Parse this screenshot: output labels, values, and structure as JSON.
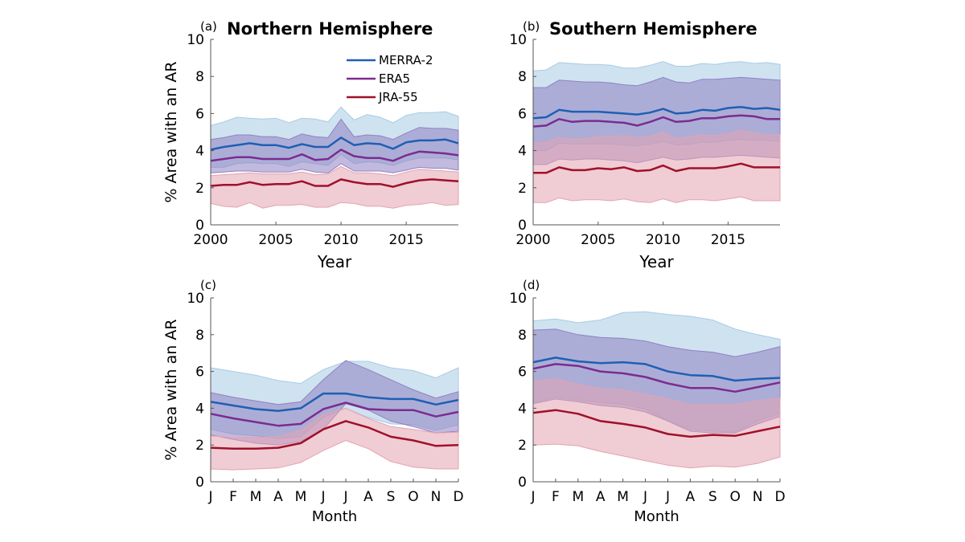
{
  "colors": {
    "MERRA-2": "#1f5fb4",
    "ERA5": "#7b2c8f",
    "JRA-55": "#a0102a",
    "MERRA-2-band": "#a8cbe4",
    "ERA5-band": "#8f82c2",
    "JRA-55-band": "#e3a3b0"
  },
  "legend": {
    "entries": [
      "MERRA-2",
      "ERA5",
      "JRA-55"
    ]
  },
  "chart_data": [
    {
      "id": "a",
      "type": "line",
      "tag": "(a)",
      "title": "Northern Hemisphere",
      "xlabel": "Year",
      "ylabel": "% Area with an AR",
      "ylim": [
        0,
        10
      ],
      "yticks": [
        "0",
        "2",
        "4",
        "6",
        "8",
        "10"
      ],
      "xlim": [
        2000,
        2019
      ],
      "xtick_values": [
        2000,
        2005,
        2010,
        2015
      ],
      "xticks": [
        "2000",
        "2005",
        "2010",
        "2015"
      ],
      "x": [
        2000,
        2001,
        2002,
        2003,
        2004,
        2005,
        2006,
        2007,
        2008,
        2009,
        2010,
        2011,
        2012,
        2013,
        2014,
        2015,
        2016,
        2017,
        2018,
        2019
      ],
      "series": [
        {
          "name": "MERRA-2",
          "values": [
            4.05,
            4.2,
            4.3,
            4.4,
            4.3,
            4.3,
            4.15,
            4.35,
            4.2,
            4.2,
            4.7,
            4.3,
            4.4,
            4.35,
            4.1,
            4.45,
            4.55,
            4.55,
            4.6,
            4.4
          ],
          "upper": [
            5.35,
            5.55,
            5.8,
            5.75,
            5.7,
            5.75,
            5.5,
            5.75,
            5.7,
            5.55,
            6.35,
            5.65,
            5.95,
            5.8,
            5.5,
            5.9,
            6.05,
            6.05,
            6.1,
            5.85
          ],
          "lower": [
            3.1,
            3.1,
            3.3,
            3.35,
            3.3,
            3.3,
            3.15,
            3.4,
            3.3,
            3.2,
            3.8,
            3.3,
            3.4,
            3.35,
            3.2,
            3.45,
            3.6,
            3.6,
            3.6,
            3.5
          ]
        },
        {
          "name": "ERA5",
          "values": [
            3.45,
            3.55,
            3.65,
            3.65,
            3.55,
            3.55,
            3.55,
            3.8,
            3.5,
            3.55,
            4.05,
            3.7,
            3.6,
            3.6,
            3.45,
            3.75,
            3.95,
            3.9,
            3.85,
            3.75
          ],
          "upper": [
            4.6,
            4.7,
            4.85,
            4.85,
            4.75,
            4.75,
            4.6,
            4.9,
            4.75,
            4.7,
            5.7,
            4.75,
            4.85,
            4.8,
            4.6,
            4.95,
            5.25,
            5.2,
            5.2,
            5.1
          ],
          "lower": [
            2.8,
            2.85,
            2.9,
            2.9,
            2.85,
            2.85,
            2.85,
            3.0,
            2.85,
            2.8,
            3.3,
            2.9,
            2.9,
            2.9,
            2.8,
            2.95,
            3.1,
            3.05,
            3.05,
            2.95
          ]
        },
        {
          "name": "JRA-55",
          "values": [
            2.1,
            2.15,
            2.15,
            2.3,
            2.15,
            2.2,
            2.2,
            2.35,
            2.1,
            2.1,
            2.45,
            2.3,
            2.2,
            2.2,
            2.05,
            2.25,
            2.4,
            2.45,
            2.4,
            2.35
          ],
          "upper": [
            2.65,
            2.7,
            2.75,
            2.8,
            2.75,
            2.75,
            2.75,
            2.85,
            2.7,
            2.75,
            3.15,
            2.8,
            2.8,
            2.75,
            2.65,
            2.85,
            3.0,
            2.95,
            2.9,
            2.85
          ],
          "lower": [
            1.15,
            1.0,
            0.95,
            1.2,
            0.9,
            1.05,
            1.05,
            1.1,
            0.95,
            0.95,
            1.2,
            1.15,
            1.0,
            1.0,
            0.9,
            1.05,
            1.1,
            1.2,
            1.05,
            1.1
          ]
        }
      ]
    },
    {
      "id": "b",
      "type": "line",
      "tag": "(b)",
      "title": "Southern Hemisphere",
      "xlabel": "Year",
      "ylabel": "",
      "ylim": [
        0,
        10
      ],
      "yticks": [
        "0",
        "2",
        "4",
        "6",
        "8",
        "10"
      ],
      "xlim": [
        2000,
        2019
      ],
      "xtick_values": [
        2000,
        2005,
        2010,
        2015
      ],
      "xticks": [
        "2000",
        "2005",
        "2010",
        "2015"
      ],
      "x": [
        2000,
        2001,
        2002,
        2003,
        2004,
        2005,
        2006,
        2007,
        2008,
        2009,
        2010,
        2011,
        2012,
        2013,
        2014,
        2015,
        2016,
        2017,
        2018,
        2019
      ],
      "series": [
        {
          "name": "MERRA-2",
          "values": [
            5.75,
            5.8,
            6.2,
            6.1,
            6.1,
            6.1,
            6.05,
            6.0,
            5.95,
            6.05,
            6.25,
            6.0,
            6.05,
            6.2,
            6.15,
            6.3,
            6.35,
            6.25,
            6.3,
            6.2
          ],
          "upper": [
            8.3,
            8.35,
            8.75,
            8.7,
            8.65,
            8.65,
            8.6,
            8.45,
            8.45,
            8.6,
            8.8,
            8.55,
            8.55,
            8.7,
            8.65,
            8.75,
            8.8,
            8.7,
            8.75,
            8.65
          ],
          "lower": [
            4.0,
            4.0,
            4.4,
            4.35,
            4.35,
            4.35,
            4.35,
            4.3,
            4.25,
            4.35,
            4.5,
            4.3,
            4.35,
            4.45,
            4.45,
            4.55,
            4.6,
            4.55,
            4.55,
            4.5
          ]
        },
        {
          "name": "ERA5",
          "values": [
            5.3,
            5.35,
            5.7,
            5.55,
            5.6,
            5.6,
            5.55,
            5.5,
            5.35,
            5.55,
            5.8,
            5.55,
            5.6,
            5.75,
            5.75,
            5.85,
            5.9,
            5.85,
            5.7,
            5.7
          ],
          "upper": [
            7.4,
            7.4,
            7.8,
            7.75,
            7.7,
            7.7,
            7.65,
            7.55,
            7.5,
            7.7,
            7.95,
            7.7,
            7.65,
            7.85,
            7.85,
            7.9,
            7.95,
            7.9,
            7.85,
            7.8
          ],
          "lower": [
            3.25,
            3.25,
            3.55,
            3.5,
            3.55,
            3.55,
            3.5,
            3.45,
            3.35,
            3.5,
            3.65,
            3.5,
            3.55,
            3.65,
            3.65,
            3.7,
            3.75,
            3.7,
            3.65,
            3.6
          ]
        },
        {
          "name": "JRA-55",
          "values": [
            2.8,
            2.8,
            3.1,
            2.95,
            2.95,
            3.05,
            3.0,
            3.1,
            2.9,
            2.95,
            3.2,
            2.9,
            3.05,
            3.05,
            3.05,
            3.15,
            3.3,
            3.1,
            3.1,
            3.1
          ],
          "upper": [
            4.4,
            4.45,
            4.7,
            4.6,
            4.65,
            4.75,
            4.75,
            4.8,
            4.7,
            4.75,
            5.0,
            4.65,
            4.75,
            4.85,
            4.8,
            4.9,
            5.1,
            4.95,
            4.85,
            4.85
          ],
          "lower": [
            1.2,
            1.2,
            1.45,
            1.3,
            1.35,
            1.35,
            1.3,
            1.4,
            1.25,
            1.2,
            1.4,
            1.2,
            1.35,
            1.35,
            1.3,
            1.4,
            1.5,
            1.3,
            1.3,
            1.3
          ]
        }
      ]
    },
    {
      "id": "c",
      "type": "line",
      "tag": "(c)",
      "title": "",
      "xlabel": "Month",
      "ylabel": "% Area with an AR",
      "ylim": [
        0,
        10
      ],
      "yticks": [
        "0",
        "2",
        "4",
        "6",
        "8",
        "10"
      ],
      "xlim": [
        1,
        12
      ],
      "xtick_values": [
        1,
        2,
        3,
        4,
        5,
        6,
        7,
        8,
        9,
        10,
        11,
        12
      ],
      "xticks": [
        "J",
        "F",
        "M",
        "A",
        "M",
        "J",
        "J",
        "A",
        "S",
        "O",
        "N",
        "D"
      ],
      "x": [
        1,
        2,
        3,
        4,
        5,
        6,
        7,
        8,
        9,
        10,
        11,
        12
      ],
      "series": [
        {
          "name": "MERRA-2",
          "values": [
            4.35,
            4.15,
            3.95,
            3.85,
            4.0,
            4.8,
            4.8,
            4.6,
            4.5,
            4.5,
            4.2,
            4.45
          ],
          "upper": [
            6.2,
            6.0,
            5.8,
            5.5,
            5.35,
            6.1,
            6.55,
            6.55,
            6.2,
            6.05,
            5.65,
            6.2
          ],
          "lower": [
            2.85,
            2.6,
            2.5,
            2.35,
            2.45,
            3.5,
            4.0,
            3.5,
            3.15,
            3.1,
            2.8,
            3.1
          ]
        },
        {
          "name": "ERA5",
          "values": [
            3.7,
            3.45,
            3.25,
            3.05,
            3.15,
            3.95,
            4.3,
            3.95,
            3.9,
            3.9,
            3.55,
            3.8
          ],
          "upper": [
            4.85,
            4.6,
            4.4,
            4.2,
            4.35,
            5.55,
            6.6,
            6.1,
            5.55,
            5.0,
            4.55,
            4.9
          ],
          "lower": [
            2.55,
            2.3,
            2.1,
            2.0,
            2.2,
            2.85,
            4.25,
            3.9,
            3.3,
            3.0,
            2.65,
            2.75
          ]
        },
        {
          "name": "JRA-55",
          "values": [
            1.85,
            1.8,
            1.8,
            1.85,
            2.1,
            2.85,
            3.3,
            2.95,
            2.45,
            2.25,
            1.95,
            2.0
          ],
          "upper": [
            2.5,
            2.4,
            2.4,
            2.45,
            2.8,
            3.65,
            4.0,
            3.45,
            3.0,
            2.85,
            2.65,
            2.7
          ],
          "lower": [
            0.7,
            0.65,
            0.7,
            0.75,
            1.05,
            1.7,
            2.25,
            1.8,
            1.1,
            0.8,
            0.7,
            0.7
          ]
        }
      ]
    },
    {
      "id": "d",
      "type": "line",
      "tag": "(d)",
      "title": "",
      "xlabel": "Month",
      "ylabel": "",
      "ylim": [
        0,
        10
      ],
      "yticks": [
        "0",
        "2",
        "4",
        "6",
        "8",
        "10"
      ],
      "xlim": [
        1,
        12
      ],
      "xtick_values": [
        1,
        2,
        3,
        4,
        5,
        6,
        7,
        8,
        9,
        10,
        11,
        12
      ],
      "xticks": [
        "J",
        "F",
        "M",
        "A",
        "M",
        "J",
        "J",
        "A",
        "S",
        "O",
        "N",
        "D"
      ],
      "x": [
        1,
        2,
        3,
        4,
        5,
        6,
        7,
        8,
        9,
        10,
        11,
        12
      ],
      "series": [
        {
          "name": "MERRA-2",
          "values": [
            6.5,
            6.75,
            6.55,
            6.45,
            6.5,
            6.4,
            6.0,
            5.8,
            5.75,
            5.5,
            5.6,
            5.65
          ],
          "upper": [
            8.75,
            8.85,
            8.65,
            8.8,
            9.2,
            9.25,
            9.1,
            9.0,
            8.8,
            8.3,
            8.0,
            7.75
          ],
          "lower": [
            4.3,
            4.6,
            4.45,
            4.3,
            4.2,
            3.95,
            3.3,
            2.85,
            2.75,
            2.7,
            3.3,
            3.7
          ]
        },
        {
          "name": "ERA5",
          "values": [
            6.15,
            6.4,
            6.3,
            6.0,
            5.9,
            5.7,
            5.35,
            5.1,
            5.1,
            4.9,
            5.15,
            5.4
          ],
          "upper": [
            8.25,
            8.3,
            8.0,
            7.85,
            7.8,
            7.65,
            7.35,
            7.15,
            7.05,
            6.8,
            7.05,
            7.35
          ],
          "lower": [
            4.25,
            4.5,
            4.35,
            4.15,
            4.05,
            3.8,
            3.3,
            2.75,
            2.65,
            2.65,
            3.15,
            3.55
          ]
        },
        {
          "name": "JRA-55",
          "values": [
            3.75,
            3.9,
            3.7,
            3.3,
            3.15,
            2.95,
            2.6,
            2.45,
            2.55,
            2.5,
            2.75,
            3.0
          ],
          "upper": [
            5.45,
            5.6,
            5.3,
            5.05,
            5.0,
            4.75,
            4.5,
            4.2,
            4.2,
            4.2,
            4.4,
            4.55
          ],
          "lower": [
            2.0,
            2.05,
            1.95,
            1.65,
            1.4,
            1.15,
            0.9,
            0.75,
            0.85,
            0.8,
            1.0,
            1.35
          ]
        }
      ]
    }
  ]
}
